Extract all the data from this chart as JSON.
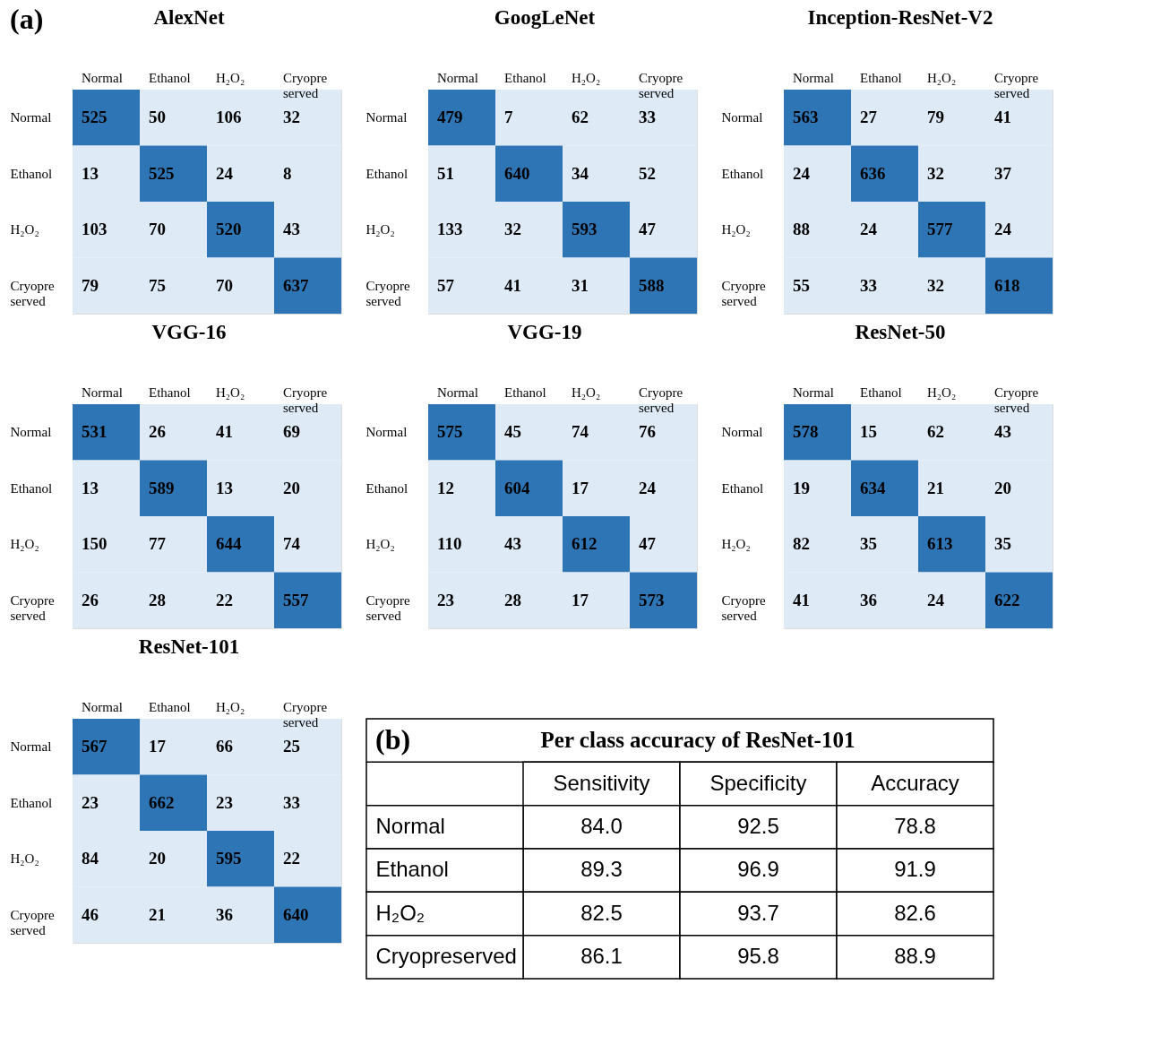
{
  "chart_data": [
    {
      "type": "heatmap",
      "data_labels": true,
      "title": "AlexNet",
      "annotations": [
        "(a)"
      ],
      "categories": [
        "Normal",
        "Ethanol",
        "H₂O₂",
        "Cryopre served"
      ],
      "y_categories": [
        "Normal",
        "Ethanol",
        "H₂O₂",
        "Cryopre served"
      ],
      "colors": [
        "#deeaf6",
        "#2e75b6"
      ],
      "cells": [
        [
          525,
          50,
          106,
          32
        ],
        [
          13,
          525,
          24,
          8
        ],
        [
          103,
          70,
          520,
          43
        ],
        [
          79,
          75,
          70,
          637
        ]
      ]
    },
    {
      "type": "heatmap",
      "data_labels": true,
      "title": "GoogLeNet",
      "categories": [
        "Normal",
        "Ethanol",
        "H₂O₂",
        "Cryopre served"
      ],
      "y_categories": [
        "Normal",
        "Ethanol",
        "H₂O₂",
        "Cryopre served"
      ],
      "colors": [
        "#deeaf6",
        "#2e75b6"
      ],
      "cells": [
        [
          479,
          7,
          62,
          33
        ],
        [
          51,
          640,
          34,
          52
        ],
        [
          133,
          32,
          593,
          47
        ],
        [
          57,
          41,
          31,
          588
        ]
      ]
    },
    {
      "type": "heatmap",
      "data_labels": true,
      "title": "Inception-ResNet-V2",
      "categories": [
        "Normal",
        "Ethanol",
        "H₂O₂",
        "Cryopre served"
      ],
      "y_categories": [
        "Normal",
        "Ethanol",
        "H₂O₂",
        "Cryopre served"
      ],
      "colors": [
        "#deeaf6",
        "#2e75b6"
      ],
      "cells": [
        [
          563,
          27,
          79,
          41
        ],
        [
          24,
          636,
          32,
          37
        ],
        [
          88,
          24,
          577,
          24
        ],
        [
          55,
          33,
          32,
          618
        ]
      ]
    },
    {
      "type": "heatmap",
      "data_labels": true,
      "title": "VGG-16",
      "categories": [
        "Normal",
        "Ethanol",
        "H₂O₂",
        "Cryopre served"
      ],
      "y_categories": [
        "Normal",
        "Ethanol",
        "H₂O₂",
        "Cryopre served"
      ],
      "colors": [
        "#deeaf6",
        "#2e75b6"
      ],
      "cells": [
        [
          531,
          26,
          41,
          69
        ],
        [
          13,
          589,
          13,
          20
        ],
        [
          150,
          77,
          644,
          74
        ],
        [
          26,
          28,
          22,
          557
        ]
      ]
    },
    {
      "type": "heatmap",
      "data_labels": true,
      "title": "VGG-19",
      "categories": [
        "Normal",
        "Ethanol",
        "H₂O₂",
        "Cryopre served"
      ],
      "y_categories": [
        "Normal",
        "Ethanol",
        "H₂O₂",
        "Cryopre served"
      ],
      "colors": [
        "#deeaf6",
        "#2e75b6"
      ],
      "cells": [
        [
          575,
          45,
          74,
          76
        ],
        [
          12,
          604,
          17,
          24
        ],
        [
          110,
          43,
          612,
          47
        ],
        [
          23,
          28,
          17,
          573
        ]
      ]
    },
    {
      "type": "heatmap",
      "data_labels": true,
      "title": "ResNet-50",
      "categories": [
        "Normal",
        "Ethanol",
        "H₂O₂",
        "Cryopre served"
      ],
      "y_categories": [
        "Normal",
        "Ethanol",
        "H₂O₂",
        "Cryopre served"
      ],
      "colors": [
        "#deeaf6",
        "#2e75b6"
      ],
      "cells": [
        [
          578,
          15,
          62,
          43
        ],
        [
          19,
          634,
          21,
          20
        ],
        [
          82,
          35,
          613,
          35
        ],
        [
          41,
          36,
          24,
          622
        ]
      ]
    },
    {
      "type": "heatmap",
      "data_labels": true,
      "title": "ResNet-101",
      "categories": [
        "Normal",
        "Ethanol",
        "H₂O₂",
        "Cryopre served"
      ],
      "y_categories": [
        "Normal",
        "Ethanol",
        "H₂O₂",
        "Cryopre served"
      ],
      "colors": [
        "#deeaf6",
        "#2e75b6"
      ],
      "cells": [
        [
          567,
          17,
          66,
          25
        ],
        [
          23,
          662,
          23,
          33
        ],
        [
          84,
          20,
          595,
          22
        ],
        [
          46,
          21,
          36,
          640
        ]
      ]
    },
    {
      "type": "other",
      "data_labels": true,
      "title": "Per class accuracy of ResNet-101",
      "annotations": [
        "(b)"
      ],
      "categories": [
        "Sensitivity",
        "Specificity",
        "Accuracy"
      ],
      "y_categories": [
        "Normal",
        "Ethanol",
        "H₂O₂",
        "Cryopreserved"
      ],
      "cell_labels": [
        [
          "84.0",
          "92.5",
          "78.8"
        ],
        [
          "89.3",
          "96.9",
          "91.9"
        ],
        [
          "82.5",
          "93.7",
          "82.6"
        ],
        [
          "86.1",
          "95.8",
          "88.9"
        ]
      ]
    }
  ]
}
